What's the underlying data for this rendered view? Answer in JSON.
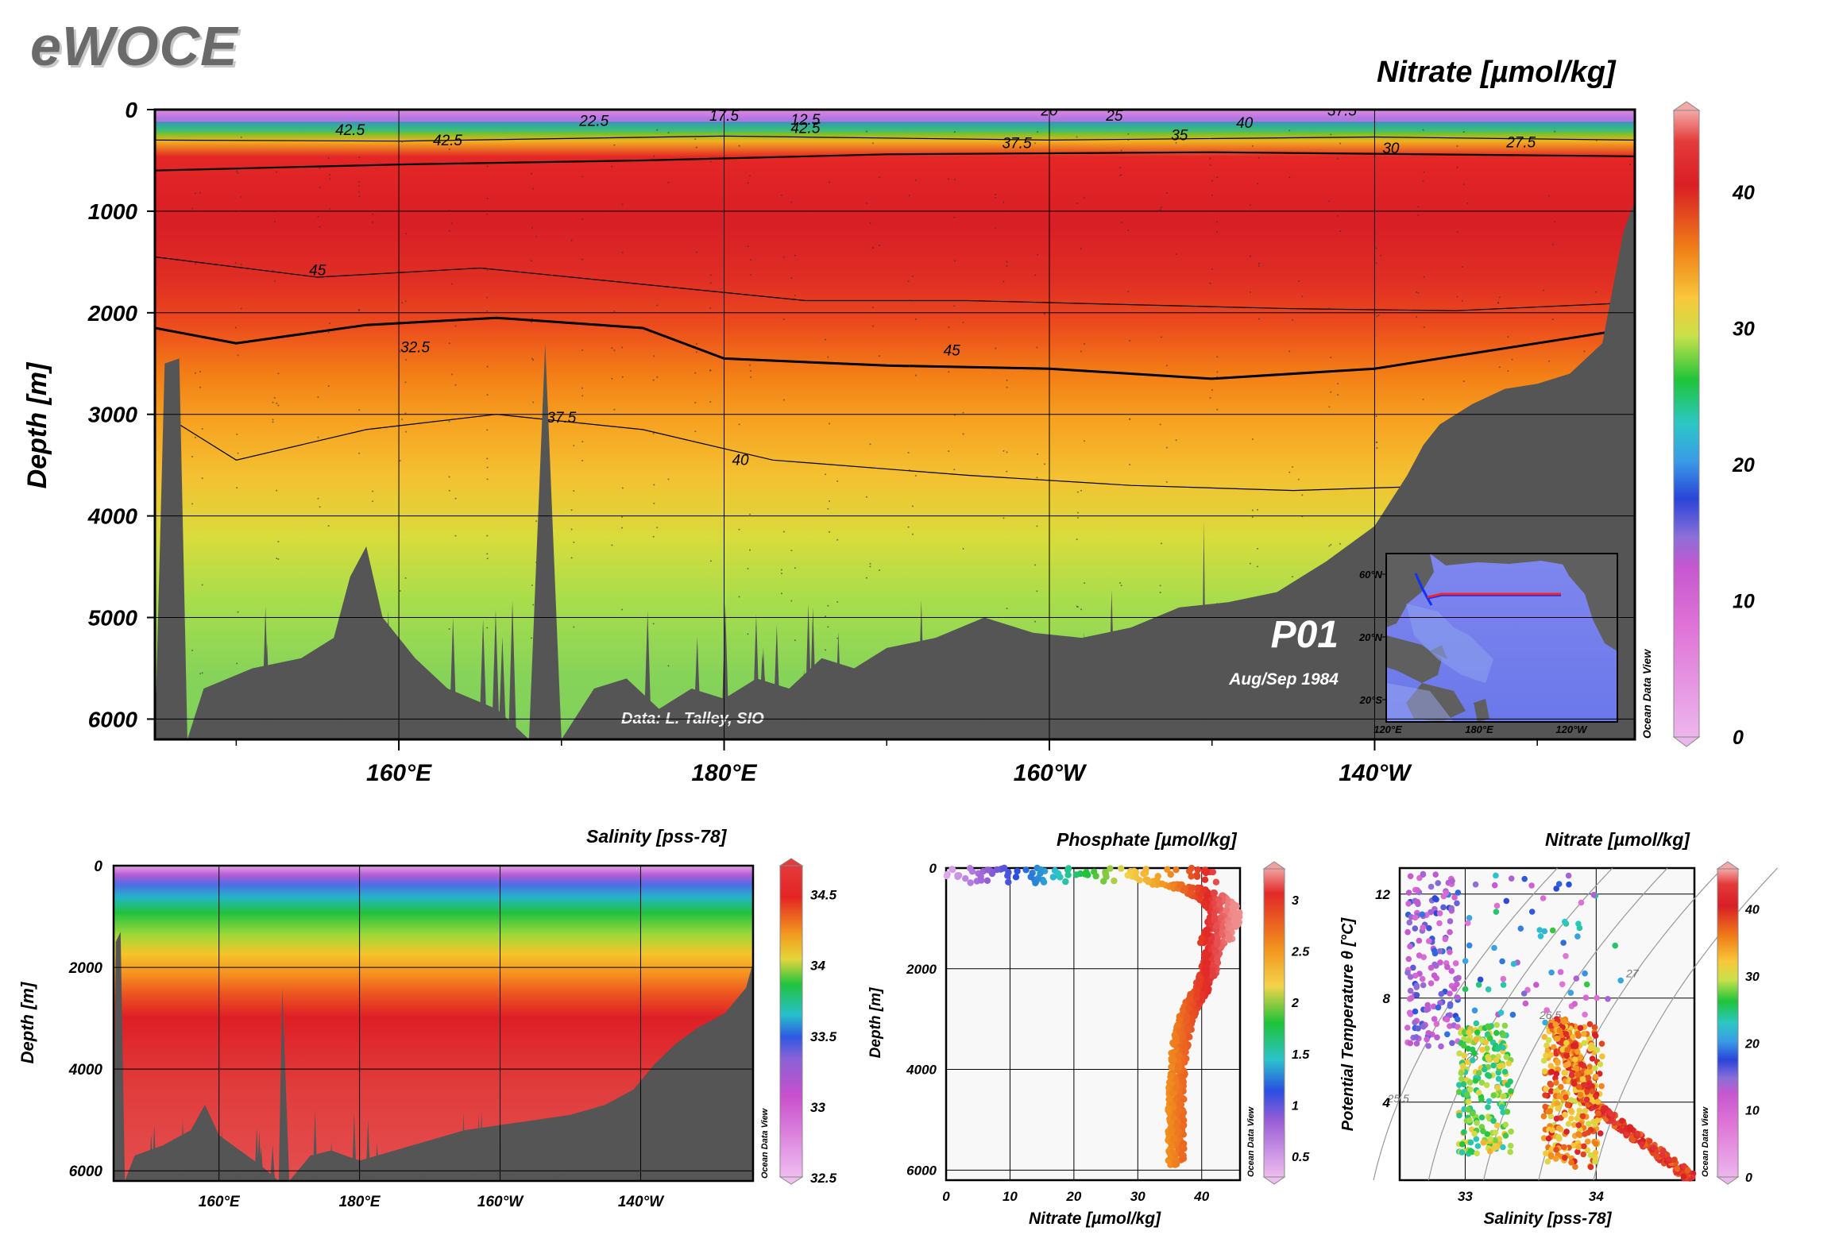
{
  "header": {
    "logo": "eWOCE",
    "credit": "Data: L. Talley, SIO",
    "section_name": "P01",
    "cruise_date": "Aug/Sep 1984",
    "watermark": "Ocean Data View"
  },
  "chart_data": [
    {
      "id": "main-section",
      "type": "heatmap",
      "title": "Nitrate [µmol/kg]",
      "xlabel": "",
      "ylabel": "Depth [m]",
      "x_ticks": [
        "160°E",
        "180°E",
        "160°W",
        "140°W"
      ],
      "y_ticks": [
        "0",
        "1000",
        "2000",
        "3000",
        "4000",
        "5000",
        "6000"
      ],
      "ylim": [
        0,
        6200
      ],
      "x_range_lon_east": [
        145,
        236
      ],
      "contour_labels": [
        "42.5",
        "45",
        "42.5",
        "45",
        "37.5",
        "40",
        "32.5",
        "35",
        "30",
        "27.5",
        "22.5",
        "17.5",
        "12.5",
        "20",
        "25",
        "40",
        "37.5",
        "37.5",
        "42.5"
      ],
      "colorbar": {
        "ticks": [
          "40",
          "30",
          "20",
          "10",
          "0"
        ],
        "range": [
          0,
          46
        ]
      },
      "inset_map": {
        "lat_ticks": [
          "60°N",
          "20°N",
          "20°S"
        ],
        "lon_ticks": [
          "120°E",
          "180°E",
          "120°W"
        ],
        "track_lat": 47
      },
      "grid": true
    },
    {
      "id": "salinity-section",
      "type": "heatmap",
      "title": "Salinity [pss-78]",
      "ylabel": "Depth [m]",
      "x_ticks": [
        "160°E",
        "180°E",
        "160°W",
        "140°W"
      ],
      "y_ticks": [
        "0",
        "2000",
        "4000",
        "6000"
      ],
      "ylim": [
        0,
        6200
      ],
      "colorbar": {
        "ticks": [
          "34.5",
          "34",
          "33.5",
          "33",
          "32.5"
        ],
        "range": [
          32.5,
          34.7
        ]
      },
      "grid": true
    },
    {
      "id": "nitrate-profile",
      "type": "scatter",
      "title": "Phosphate [µmol/kg]",
      "xlabel": "Nitrate [µmol/kg]",
      "ylabel": "Depth [m]",
      "x_ticks": [
        "0",
        "10",
        "20",
        "30",
        "40"
      ],
      "y_ticks": [
        "0",
        "2000",
        "4000",
        "6000"
      ],
      "xlim": [
        0,
        46
      ],
      "ylim": [
        0,
        6200
      ],
      "profile_nitrate": [
        0.2,
        10,
        28,
        38,
        42,
        44,
        43,
        42,
        41.5,
        41,
        40,
        38.5,
        37.5,
        37,
        36.5,
        36.2,
        36,
        36,
        36,
        36
      ],
      "profile_depth": [
        0,
        80,
        200,
        400,
        600,
        900,
        1200,
        1500,
        1800,
        2100,
        2400,
        2700,
        3000,
        3300,
        3600,
        4000,
        4500,
        5000,
        5500,
        5900
      ],
      "colorbar": {
        "ticks": [
          "3",
          "2.5",
          "2",
          "1.5",
          "1",
          "0.5"
        ],
        "range": [
          0.3,
          3.3
        ]
      },
      "grid": true
    },
    {
      "id": "theta-s",
      "type": "scatter",
      "title": "Nitrate [µmol/kg]",
      "xlabel": "Salinity [pss-78]",
      "ylabel": "Potential Temperature θ [°C]",
      "x_ticks": [
        "33",
        "34"
      ],
      "y_ticks": [
        "12",
        "8",
        "4"
      ],
      "xlim": [
        32.5,
        34.75
      ],
      "ylim": [
        1,
        13
      ],
      "isopycnals": [
        "25.5",
        "26",
        "26.5",
        "27",
        "27.5"
      ],
      "colorbar": {
        "ticks": [
          "40",
          "30",
          "20",
          "10",
          "0"
        ],
        "range": [
          0,
          46
        ]
      },
      "grid": true
    }
  ]
}
